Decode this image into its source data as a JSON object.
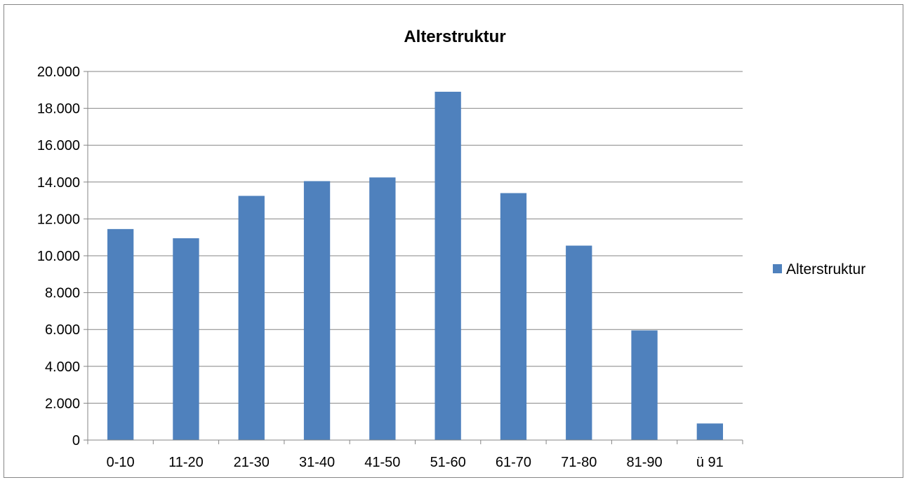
{
  "chart_data": {
    "type": "bar",
    "title": "Alterstruktur",
    "xlabel": "",
    "ylabel": "",
    "categories": [
      "0-10",
      "11-20",
      "21-30",
      "31-40",
      "41-50",
      "51-60",
      "61-70",
      "71-80",
      "81-90",
      "ü 91"
    ],
    "series": [
      {
        "name": "Alterstruktur",
        "color": "#4f81bd",
        "values": [
          11450,
          10950,
          13250,
          14050,
          14250,
          18900,
          13400,
          10550,
          5950,
          900
        ]
      }
    ],
    "ylim": [
      0,
      20000
    ],
    "yticks": [
      0,
      2000,
      4000,
      6000,
      8000,
      10000,
      12000,
      14000,
      16000,
      18000,
      20000
    ],
    "ytick_labels": [
      "0",
      "2.000",
      "4.000",
      "6.000",
      "8.000",
      "10.000",
      "12.000",
      "14.000",
      "16.000",
      "18.000",
      "20.000"
    ],
    "grid": true,
    "legend_position": "right",
    "colors": {
      "bar": "#4f81bd",
      "grid": "#868686",
      "axis": "#868686"
    }
  }
}
